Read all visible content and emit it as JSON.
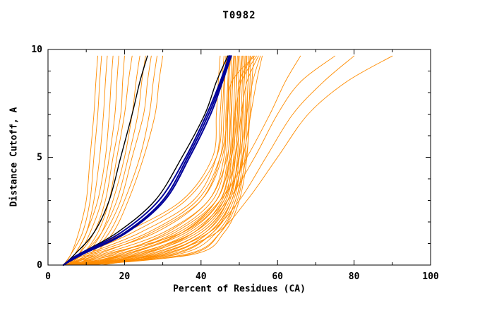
{
  "chart_data": {
    "type": "line",
    "title": "T0982",
    "xlabel": "Percent of Residues (CA)",
    "ylabel": "Distance Cutoff, A",
    "xlim": [
      0,
      100
    ],
    "ylim": [
      0,
      10
    ],
    "x_ticks": [
      0,
      20,
      40,
      60,
      80,
      100
    ],
    "x_minor_ticks": [
      10,
      30,
      50,
      70,
      90
    ],
    "y_ticks": [
      0,
      5,
      10
    ],
    "y_minor_ticks": [
      1,
      2,
      3,
      4,
      6,
      7,
      8,
      9
    ],
    "legend_position": "none",
    "grid": false,
    "colors": {
      "model": "#ff8c00",
      "reference": "#000000",
      "best": "#000099"
    },
    "cutoffs": [
      0,
      0.5,
      1.5,
      3,
      5,
      7,
      8.5,
      9.7
    ],
    "series": [
      {
        "color": "orange",
        "pct": [
          4,
          6,
          8,
          10,
          11,
          12,
          12.5,
          13
        ]
      },
      {
        "color": "orange",
        "pct": [
          4,
          6,
          9,
          11,
          12,
          13,
          13.5,
          14
        ]
      },
      {
        "color": "orange",
        "pct": [
          5,
          7,
          10,
          12,
          13.5,
          14.5,
          15,
          15.5
        ]
      },
      {
        "color": "orange",
        "pct": [
          4,
          7,
          10,
          13,
          15,
          16,
          16.5,
          17
        ]
      },
      {
        "color": "orange",
        "pct": [
          5,
          8,
          11,
          14,
          16,
          17.5,
          18,
          18.5
        ]
      },
      {
        "color": "orange",
        "pct": [
          4,
          8,
          12,
          15,
          17,
          19,
          19.5,
          20
        ]
      },
      {
        "color": "orange",
        "pct": [
          5,
          9,
          13,
          16,
          18,
          20,
          21,
          22
        ]
      },
      {
        "color": "orange",
        "pct": [
          6,
          10,
          14,
          17,
          20,
          22,
          23,
          24
        ]
      },
      {
        "color": "orange",
        "pct": [
          5,
          9,
          14,
          18,
          21,
          23.5,
          24.5,
          25.5
        ]
      },
      {
        "color": "orange",
        "pct": [
          6,
          11,
          15,
          19,
          22,
          25,
          26,
          27
        ]
      },
      {
        "color": "orange",
        "pct": [
          6,
          11,
          16,
          20,
          24,
          26.5,
          27.5,
          28.5
        ]
      },
      {
        "color": "orange",
        "pct": [
          7,
          12,
          17,
          21,
          25,
          28,
          29,
          30
        ]
      },
      {
        "color": "orange",
        "pct": [
          4,
          8,
          20,
          35,
          43,
          44,
          44.5,
          45
        ]
      },
      {
        "color": "orange",
        "pct": [
          4,
          10,
          24,
          38,
          44,
          45,
          45.5,
          46
        ]
      },
      {
        "color": "orange",
        "pct": [
          5,
          12,
          28,
          40,
          45,
          46,
          46.2,
          46.5
        ]
      },
      {
        "color": "orange",
        "pct": [
          4,
          14,
          30,
          42,
          46,
          46.5,
          47,
          47.2
        ]
      },
      {
        "color": "orange",
        "pct": [
          5,
          16,
          32,
          43,
          46.5,
          47,
          47.3,
          47.5
        ]
      },
      {
        "color": "orange",
        "pct": [
          4,
          18,
          34,
          44,
          47,
          47.5,
          47.8,
          48
        ]
      },
      {
        "color": "orange",
        "pct": [
          5,
          20,
          36,
          45,
          47.5,
          48,
          48.2,
          48.5
        ]
      },
      {
        "color": "orange",
        "pct": [
          6,
          22,
          38,
          46,
          48,
          48.5,
          48.8,
          49
        ]
      },
      {
        "color": "orange",
        "pct": [
          5,
          24,
          39,
          46.5,
          48.5,
          49,
          49.2,
          49.5
        ]
      },
      {
        "color": "orange",
        "pct": [
          6,
          26,
          40,
          47,
          49,
          49.5,
          49.8,
          50
        ]
      },
      {
        "color": "orange",
        "pct": [
          5,
          28,
          41,
          47.5,
          49.5,
          50,
          50.2,
          50.5
        ]
      },
      {
        "color": "orange",
        "pct": [
          6,
          30,
          42,
          48,
          50,
          50.5,
          50.8,
          51
        ]
      },
      {
        "color": "orange",
        "pct": [
          7,
          32,
          43,
          48.5,
          50.5,
          51,
          51.2,
          51.5
        ]
      },
      {
        "color": "orange",
        "pct": [
          6,
          34,
          44,
          49,
          51,
          51.5,
          51.8,
          52
        ]
      },
      {
        "color": "orange",
        "pct": [
          7,
          36,
          45,
          49.5,
          51.5,
          52,
          52.3,
          52.5
        ]
      },
      {
        "color": "orange",
        "pct": [
          8,
          38,
          46,
          50,
          52,
          52.5,
          52.8,
          53
        ]
      },
      {
        "color": "orange",
        "pct": [
          6,
          15,
          35,
          45,
          48,
          49.5,
          50,
          53.5
        ]
      },
      {
        "color": "orange",
        "pct": [
          5,
          11,
          26,
          39,
          45,
          47,
          48,
          54
        ]
      },
      {
        "color": "orange",
        "pct": [
          7,
          19,
          33,
          44,
          47.5,
          49,
          50.5,
          54.5
        ]
      },
      {
        "color": "orange",
        "pct": [
          8,
          23,
          37,
          46,
          49,
          50.5,
          52,
          55
        ]
      },
      {
        "color": "orange",
        "pct": [
          9,
          27,
          40,
          47,
          50,
          52,
          53.5,
          55.5
        ]
      },
      {
        "color": "orange",
        "pct": [
          10,
          31,
          42,
          48,
          51,
          53,
          54.5,
          56
        ]
      },
      {
        "color": "orange",
        "pct": [
          4,
          9,
          22,
          36,
          44,
          45.5,
          46,
          46.8
        ]
      },
      {
        "color": "orange",
        "pct": [
          5,
          13,
          27,
          40,
          45.5,
          46.8,
          47.2,
          47.8
        ]
      },
      {
        "color": "orange",
        "pct": [
          6,
          17,
          31,
          42,
          46.8,
          47.8,
          48.3,
          48.8
        ]
      },
      {
        "color": "orange",
        "pct": [
          7,
          21,
          35,
          44,
          47.8,
          48.8,
          49.3,
          49.8
        ]
      },
      {
        "color": "orange",
        "pct": [
          8,
          25,
          38,
          45.5,
          48.8,
          49.8,
          50.3,
          50.8
        ]
      },
      {
        "color": "orange",
        "pct": [
          9,
          29,
          41,
          47,
          49.8,
          50.8,
          51.3,
          51.8
        ]
      },
      {
        "color": "orange",
        "pct": [
          10,
          33,
          43,
          48,
          50.8,
          51.8,
          52.3,
          52.8
        ]
      },
      {
        "color": "orange",
        "pct": [
          11,
          37,
          45,
          49,
          51.8,
          52.8,
          53.3,
          53.8
        ]
      },
      {
        "color": "orange",
        "pct": [
          8,
          20,
          35,
          45,
          52,
          58,
          62,
          66
        ]
      },
      {
        "color": "orange",
        "pct": [
          10,
          24,
          38,
          47,
          54,
          60,
          66,
          75
        ]
      },
      {
        "color": "orange",
        "pct": [
          12,
          28,
          42,
          50,
          57,
          64,
          72,
          80
        ]
      },
      {
        "color": "orange",
        "pct": [
          14,
          30,
          44,
          52,
          60,
          68,
          78,
          90
        ]
      },
      {
        "color": "black",
        "pct": [
          4,
          7,
          12,
          16,
          19,
          22,
          24,
          26
        ]
      },
      {
        "color": "black",
        "pct": [
          4,
          8,
          18,
          28,
          35,
          41,
          44,
          47
        ]
      },
      {
        "color": "blue",
        "pct": [
          4,
          8,
          19,
          29,
          36,
          41.5,
          45,
          47.3
        ]
      },
      {
        "color": "blue",
        "pct": [
          4,
          8.5,
          20,
          30,
          36.5,
          42,
          45.3,
          47.6
        ]
      },
      {
        "color": "blue",
        "pct": [
          4,
          9,
          20.5,
          30.5,
          37,
          42.5,
          45.6,
          47.9
        ]
      }
    ]
  }
}
